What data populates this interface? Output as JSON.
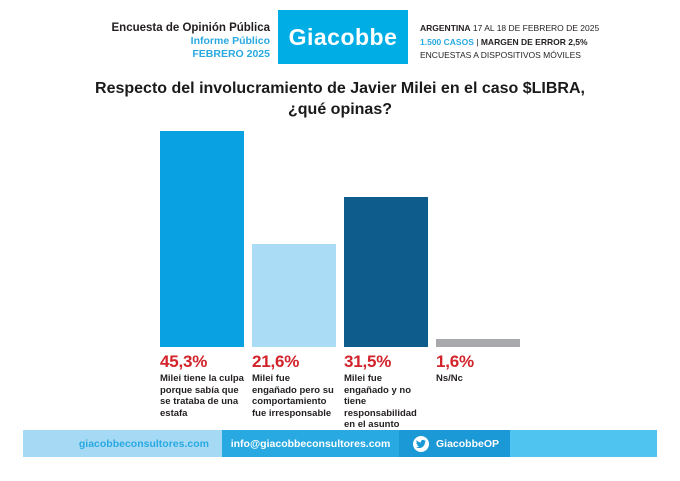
{
  "header": {
    "program": "Encuesta de Opinión Pública",
    "report": "Informe Público",
    "month": "FEBRERO 2025",
    "brand": "Giacobbe",
    "country": "ARGENTINA",
    "field_dates": "17 AL 18 DE FEBRERO DE 2025",
    "cases": "1.500 CASOS",
    "separator": "|",
    "margin_error": "MARGEN DE ERROR 2,5%",
    "method": "ENCUESTAS A DISPOSITIVOS MÓVILES"
  },
  "question": {
    "line1": "Respecto del involucramiento de Javier Milei en el caso $LIBRA,",
    "line2": "¿qué opinas?"
  },
  "chart_data": {
    "type": "bar",
    "title": "Respecto del involucramiento de Javier Milei en el caso $LIBRA, ¿qué opinas?",
    "categories": [
      "Milei tiene la culpa porque sabía que se trataba de una estafa",
      "Milei fue engañado pero su comportamiento fue irresponsable",
      "Milei fue engañado y no tiene responsabilidad en el asunto",
      "Ns/Nc"
    ],
    "values": [
      45.3,
      21.6,
      31.5,
      1.6
    ],
    "value_labels": [
      "45,3%",
      "21,6%",
      "31,5%",
      "1,6%"
    ],
    "bar_colors": [
      "#0AA1E2",
      "#AADDF5",
      "#0E5C8C",
      "#A7A9AC"
    ],
    "value_label_color": "#D2232A",
    "ylim": [
      0,
      50
    ],
    "grid": false,
    "legend": "none",
    "xlabel": "",
    "ylabel": ""
  },
  "footer": {
    "website": "giacobbeconsultores.com",
    "email": "info@giacobbeconsultores.com",
    "twitter": "GiacobbeOP",
    "twitter_icon": "twitter-bird-icon"
  },
  "colors": {
    "accent_blue": "#29A9E1",
    "logo_cyan": "#00AEE5",
    "bar_cyan": "#0AA1E2",
    "bar_light": "#AADDF5",
    "bar_dark": "#0E5C8C",
    "bar_gray": "#A7A9AC",
    "percent_red": "#D2232A",
    "footer_pale": "#A6D9F4",
    "footer_mid": "#29A9E1",
    "footer_dark": "#1B98D6",
    "footer_light": "#4FC4F0",
    "text_dark": "#231F20"
  }
}
